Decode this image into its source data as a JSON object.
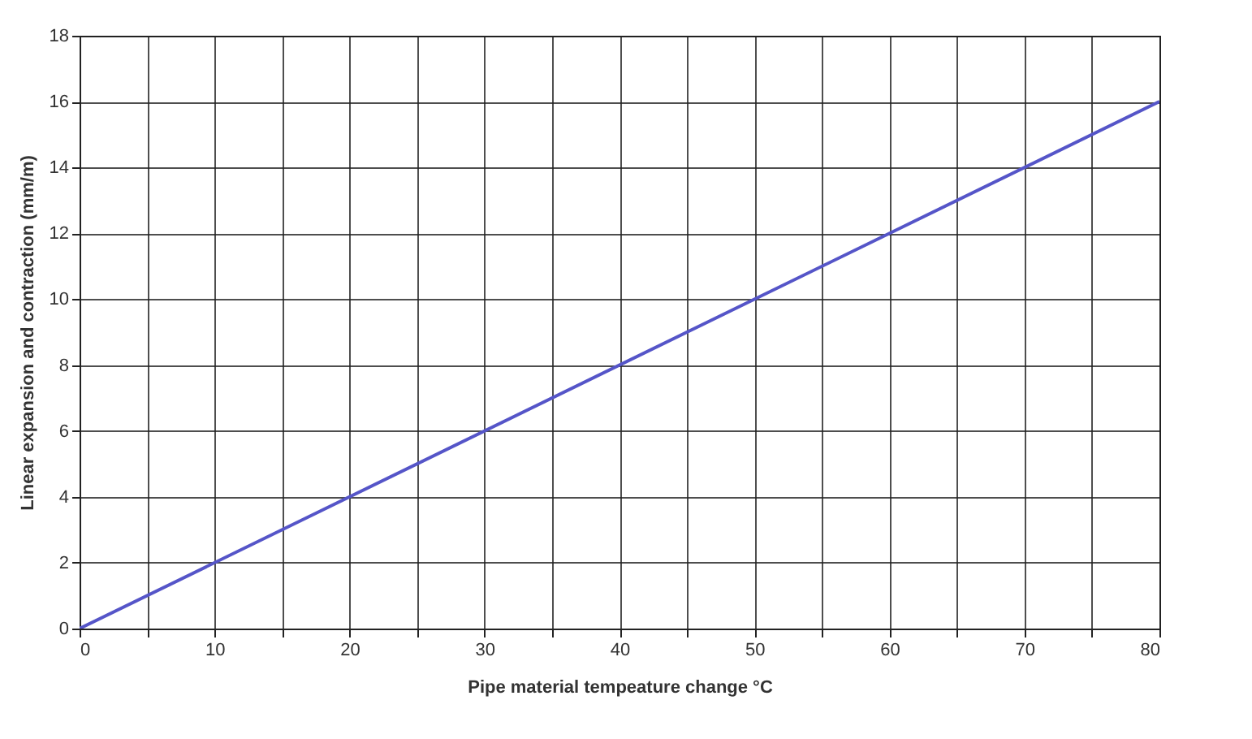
{
  "chart_data": {
    "type": "line",
    "xlabel": "Pipe material tempeature change °C",
    "ylabel": "Linear expansion and contraction (mm/m)",
    "x": [
      0,
      80
    ],
    "series": [
      {
        "color": "#5555c8",
        "values": [
          0,
          16
        ]
      }
    ],
    "xlim": [
      0,
      80
    ],
    "xticks": [
      0,
      {
        "value": 5,
        "label": null
      },
      10,
      {
        "value": 15,
        "label": null
      },
      20,
      {
        "value": 25,
        "label": null
      },
      30,
      {
        "value": 35,
        "label": null
      },
      40,
      {
        "value": 45,
        "label": null
      },
      50,
      {
        "value": 55,
        "label": null
      },
      60,
      {
        "value": 65,
        "label": null
      },
      70,
      {
        "value": 75,
        "label": null
      },
      80
    ],
    "ylim": [
      0,
      18
    ],
    "yticks": [
      0,
      2,
      4,
      6,
      8,
      10,
      12,
      14,
      16,
      18
    ],
    "grid": true,
    "marker": "none",
    "line_style": "solid"
  }
}
